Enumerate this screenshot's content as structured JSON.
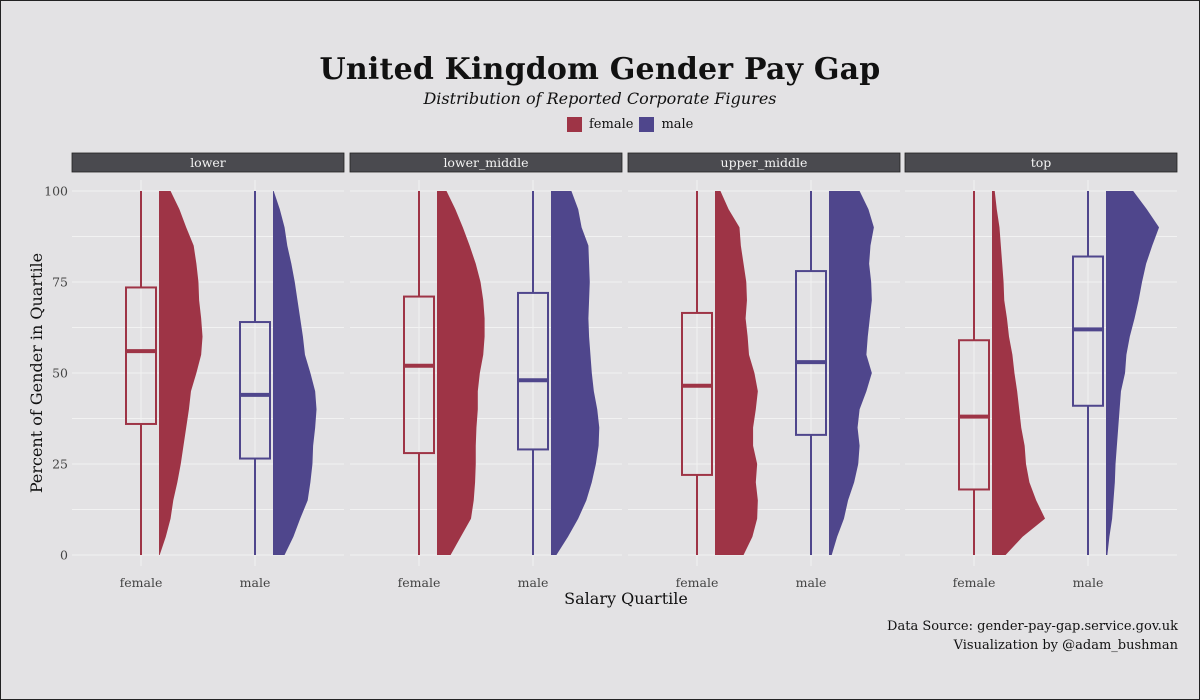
{
  "title": "United Kingdom Gender Pay Gap",
  "subtitle": "Distribution of Reported Corporate Figures",
  "caption": {
    "line1": "Data Source: gender-pay-gap.service.gov.uk",
    "line2": "Visualization by @adam_bushman"
  },
  "colors": {
    "female": "#9e3446",
    "male": "#4f468c"
  },
  "chart_data": {
    "type": "raincloud (half-violin + boxplot)",
    "xlabel": "Salary Quartile",
    "ylabel": "Percent of Gender in Quartile",
    "ylim": [
      0,
      100
    ],
    "yticks": [
      0,
      25,
      50,
      75,
      100
    ],
    "legend": {
      "position": "top",
      "entries": [
        "female",
        "male"
      ]
    },
    "grid": true,
    "categories": [
      "female",
      "male"
    ],
    "facets": [
      {
        "name": "lower",
        "female": {
          "box": {
            "min": 0,
            "q1": 36,
            "median": 56,
            "q3": 73.5,
            "max": 100
          },
          "density": [
            [
              0,
              0.01
            ],
            [
              5,
              0.1
            ],
            [
              10,
              0.17
            ],
            [
              15,
              0.21
            ],
            [
              20,
              0.27
            ],
            [
              25,
              0.32
            ],
            [
              30,
              0.36
            ],
            [
              35,
              0.4
            ],
            [
              40,
              0.44
            ],
            [
              45,
              0.47
            ],
            [
              50,
              0.55
            ],
            [
              55,
              0.62
            ],
            [
              60,
              0.64
            ],
            [
              65,
              0.62
            ],
            [
              70,
              0.59
            ],
            [
              75,
              0.58
            ],
            [
              80,
              0.55
            ],
            [
              85,
              0.51
            ],
            [
              90,
              0.4
            ],
            [
              95,
              0.3
            ],
            [
              100,
              0.17
            ]
          ]
        },
        "male": {
          "box": {
            "min": 0,
            "q1": 26.5,
            "median": 44,
            "q3": 64,
            "max": 100
          },
          "density": [
            [
              0,
              0.17
            ],
            [
              5,
              0.3
            ],
            [
              10,
              0.4
            ],
            [
              15,
              0.51
            ],
            [
              20,
              0.55
            ],
            [
              25,
              0.58
            ],
            [
              30,
              0.59
            ],
            [
              35,
              0.62
            ],
            [
              40,
              0.64
            ],
            [
              45,
              0.62
            ],
            [
              50,
              0.55
            ],
            [
              55,
              0.47
            ],
            [
              60,
              0.44
            ],
            [
              65,
              0.4
            ],
            [
              70,
              0.36
            ],
            [
              75,
              0.32
            ],
            [
              80,
              0.27
            ],
            [
              85,
              0.21
            ],
            [
              90,
              0.17
            ],
            [
              95,
              0.1
            ],
            [
              100,
              0.01
            ]
          ]
        }
      },
      {
        "name": "lower_middle",
        "female": {
          "box": {
            "min": 0,
            "q1": 28,
            "median": 52,
            "q3": 71,
            "max": 100
          },
          "density": [
            [
              0,
              0.2
            ],
            [
              5,
              0.35
            ],
            [
              10,
              0.5
            ],
            [
              15,
              0.54
            ],
            [
              20,
              0.56
            ],
            [
              25,
              0.57
            ],
            [
              30,
              0.57
            ],
            [
              35,
              0.58
            ],
            [
              40,
              0.6
            ],
            [
              45,
              0.6
            ],
            [
              50,
              0.63
            ],
            [
              55,
              0.68
            ],
            [
              60,
              0.7
            ],
            [
              65,
              0.7
            ],
            [
              70,
              0.68
            ],
            [
              75,
              0.64
            ],
            [
              80,
              0.57
            ],
            [
              85,
              0.48
            ],
            [
              90,
              0.38
            ],
            [
              95,
              0.27
            ],
            [
              100,
              0.14
            ]
          ]
        },
        "male": {
          "box": {
            "min": 0,
            "q1": 29,
            "median": 48,
            "q3": 72,
            "max": 100
          },
          "density": [
            [
              0,
              0.08
            ],
            [
              5,
              0.25
            ],
            [
              10,
              0.4
            ],
            [
              15,
              0.52
            ],
            [
              20,
              0.6
            ],
            [
              25,
              0.66
            ],
            [
              30,
              0.7
            ],
            [
              35,
              0.71
            ],
            [
              40,
              0.68
            ],
            [
              45,
              0.63
            ],
            [
              50,
              0.6
            ],
            [
              55,
              0.58
            ],
            [
              60,
              0.56
            ],
            [
              65,
              0.55
            ],
            [
              70,
              0.56
            ],
            [
              75,
              0.57
            ],
            [
              80,
              0.56
            ],
            [
              85,
              0.55
            ],
            [
              90,
              0.45
            ],
            [
              95,
              0.4
            ],
            [
              100,
              0.3
            ]
          ]
        }
      },
      {
        "name": "upper_middle",
        "female": {
          "box": {
            "min": 0,
            "q1": 22,
            "median": 46.5,
            "q3": 66.5,
            "max": 100
          },
          "density": [
            [
              0,
              0.42
            ],
            [
              5,
              0.55
            ],
            [
              10,
              0.62
            ],
            [
              15,
              0.63
            ],
            [
              20,
              0.6
            ],
            [
              25,
              0.62
            ],
            [
              30,
              0.56
            ],
            [
              35,
              0.56
            ],
            [
              40,
              0.6
            ],
            [
              45,
              0.63
            ],
            [
              50,
              0.58
            ],
            [
              55,
              0.5
            ],
            [
              60,
              0.48
            ],
            [
              65,
              0.45
            ],
            [
              70,
              0.47
            ],
            [
              75,
              0.46
            ],
            [
              80,
              0.42
            ],
            [
              85,
              0.38
            ],
            [
              90,
              0.36
            ],
            [
              95,
              0.2
            ],
            [
              100,
              0.08
            ]
          ]
        },
        "male": {
          "box": {
            "min": 0,
            "q1": 33,
            "median": 53,
            "q3": 78,
            "max": 100
          },
          "density": [
            [
              0,
              0.04
            ],
            [
              5,
              0.12
            ],
            [
              10,
              0.22
            ],
            [
              15,
              0.28
            ],
            [
              20,
              0.37
            ],
            [
              25,
              0.43
            ],
            [
              30,
              0.45
            ],
            [
              35,
              0.42
            ],
            [
              40,
              0.45
            ],
            [
              45,
              0.55
            ],
            [
              50,
              0.63
            ],
            [
              55,
              0.55
            ],
            [
              60,
              0.57
            ],
            [
              65,
              0.6
            ],
            [
              70,
              0.63
            ],
            [
              75,
              0.62
            ],
            [
              80,
              0.59
            ],
            [
              85,
              0.61
            ],
            [
              90,
              0.66
            ],
            [
              95,
              0.58
            ],
            [
              100,
              0.45
            ]
          ]
        }
      },
      {
        "name": "top",
        "female": {
          "box": {
            "min": 0,
            "q1": 18,
            "median": 38,
            "q3": 59,
            "max": 100
          },
          "density": [
            [
              0,
              0.2
            ],
            [
              5,
              0.45
            ],
            [
              10,
              0.78
            ],
            [
              15,
              0.65
            ],
            [
              20,
              0.55
            ],
            [
              25,
              0.5
            ],
            [
              30,
              0.48
            ],
            [
              35,
              0.43
            ],
            [
              40,
              0.4
            ],
            [
              45,
              0.37
            ],
            [
              50,
              0.33
            ],
            [
              55,
              0.3
            ],
            [
              60,
              0.25
            ],
            [
              65,
              0.22
            ],
            [
              70,
              0.18
            ],
            [
              75,
              0.17
            ],
            [
              80,
              0.15
            ],
            [
              85,
              0.13
            ],
            [
              90,
              0.11
            ],
            [
              95,
              0.07
            ],
            [
              100,
              0.04
            ]
          ]
        },
        "male": {
          "box": {
            "min": 0,
            "q1": 41,
            "median": 62,
            "q3": 82,
            "max": 100
          },
          "density": [
            [
              0,
              0.02
            ],
            [
              5,
              0.05
            ],
            [
              10,
              0.09
            ],
            [
              15,
              0.11
            ],
            [
              20,
              0.13
            ],
            [
              25,
              0.14
            ],
            [
              30,
              0.16
            ],
            [
              35,
              0.18
            ],
            [
              40,
              0.2
            ],
            [
              45,
              0.22
            ],
            [
              50,
              0.28
            ],
            [
              55,
              0.3
            ],
            [
              60,
              0.35
            ],
            [
              65,
              0.42
            ],
            [
              70,
              0.48
            ],
            [
              75,
              0.53
            ],
            [
              80,
              0.59
            ],
            [
              85,
              0.68
            ],
            [
              90,
              0.78
            ],
            [
              95,
              0.6
            ],
            [
              100,
              0.4
            ]
          ]
        }
      }
    ]
  }
}
